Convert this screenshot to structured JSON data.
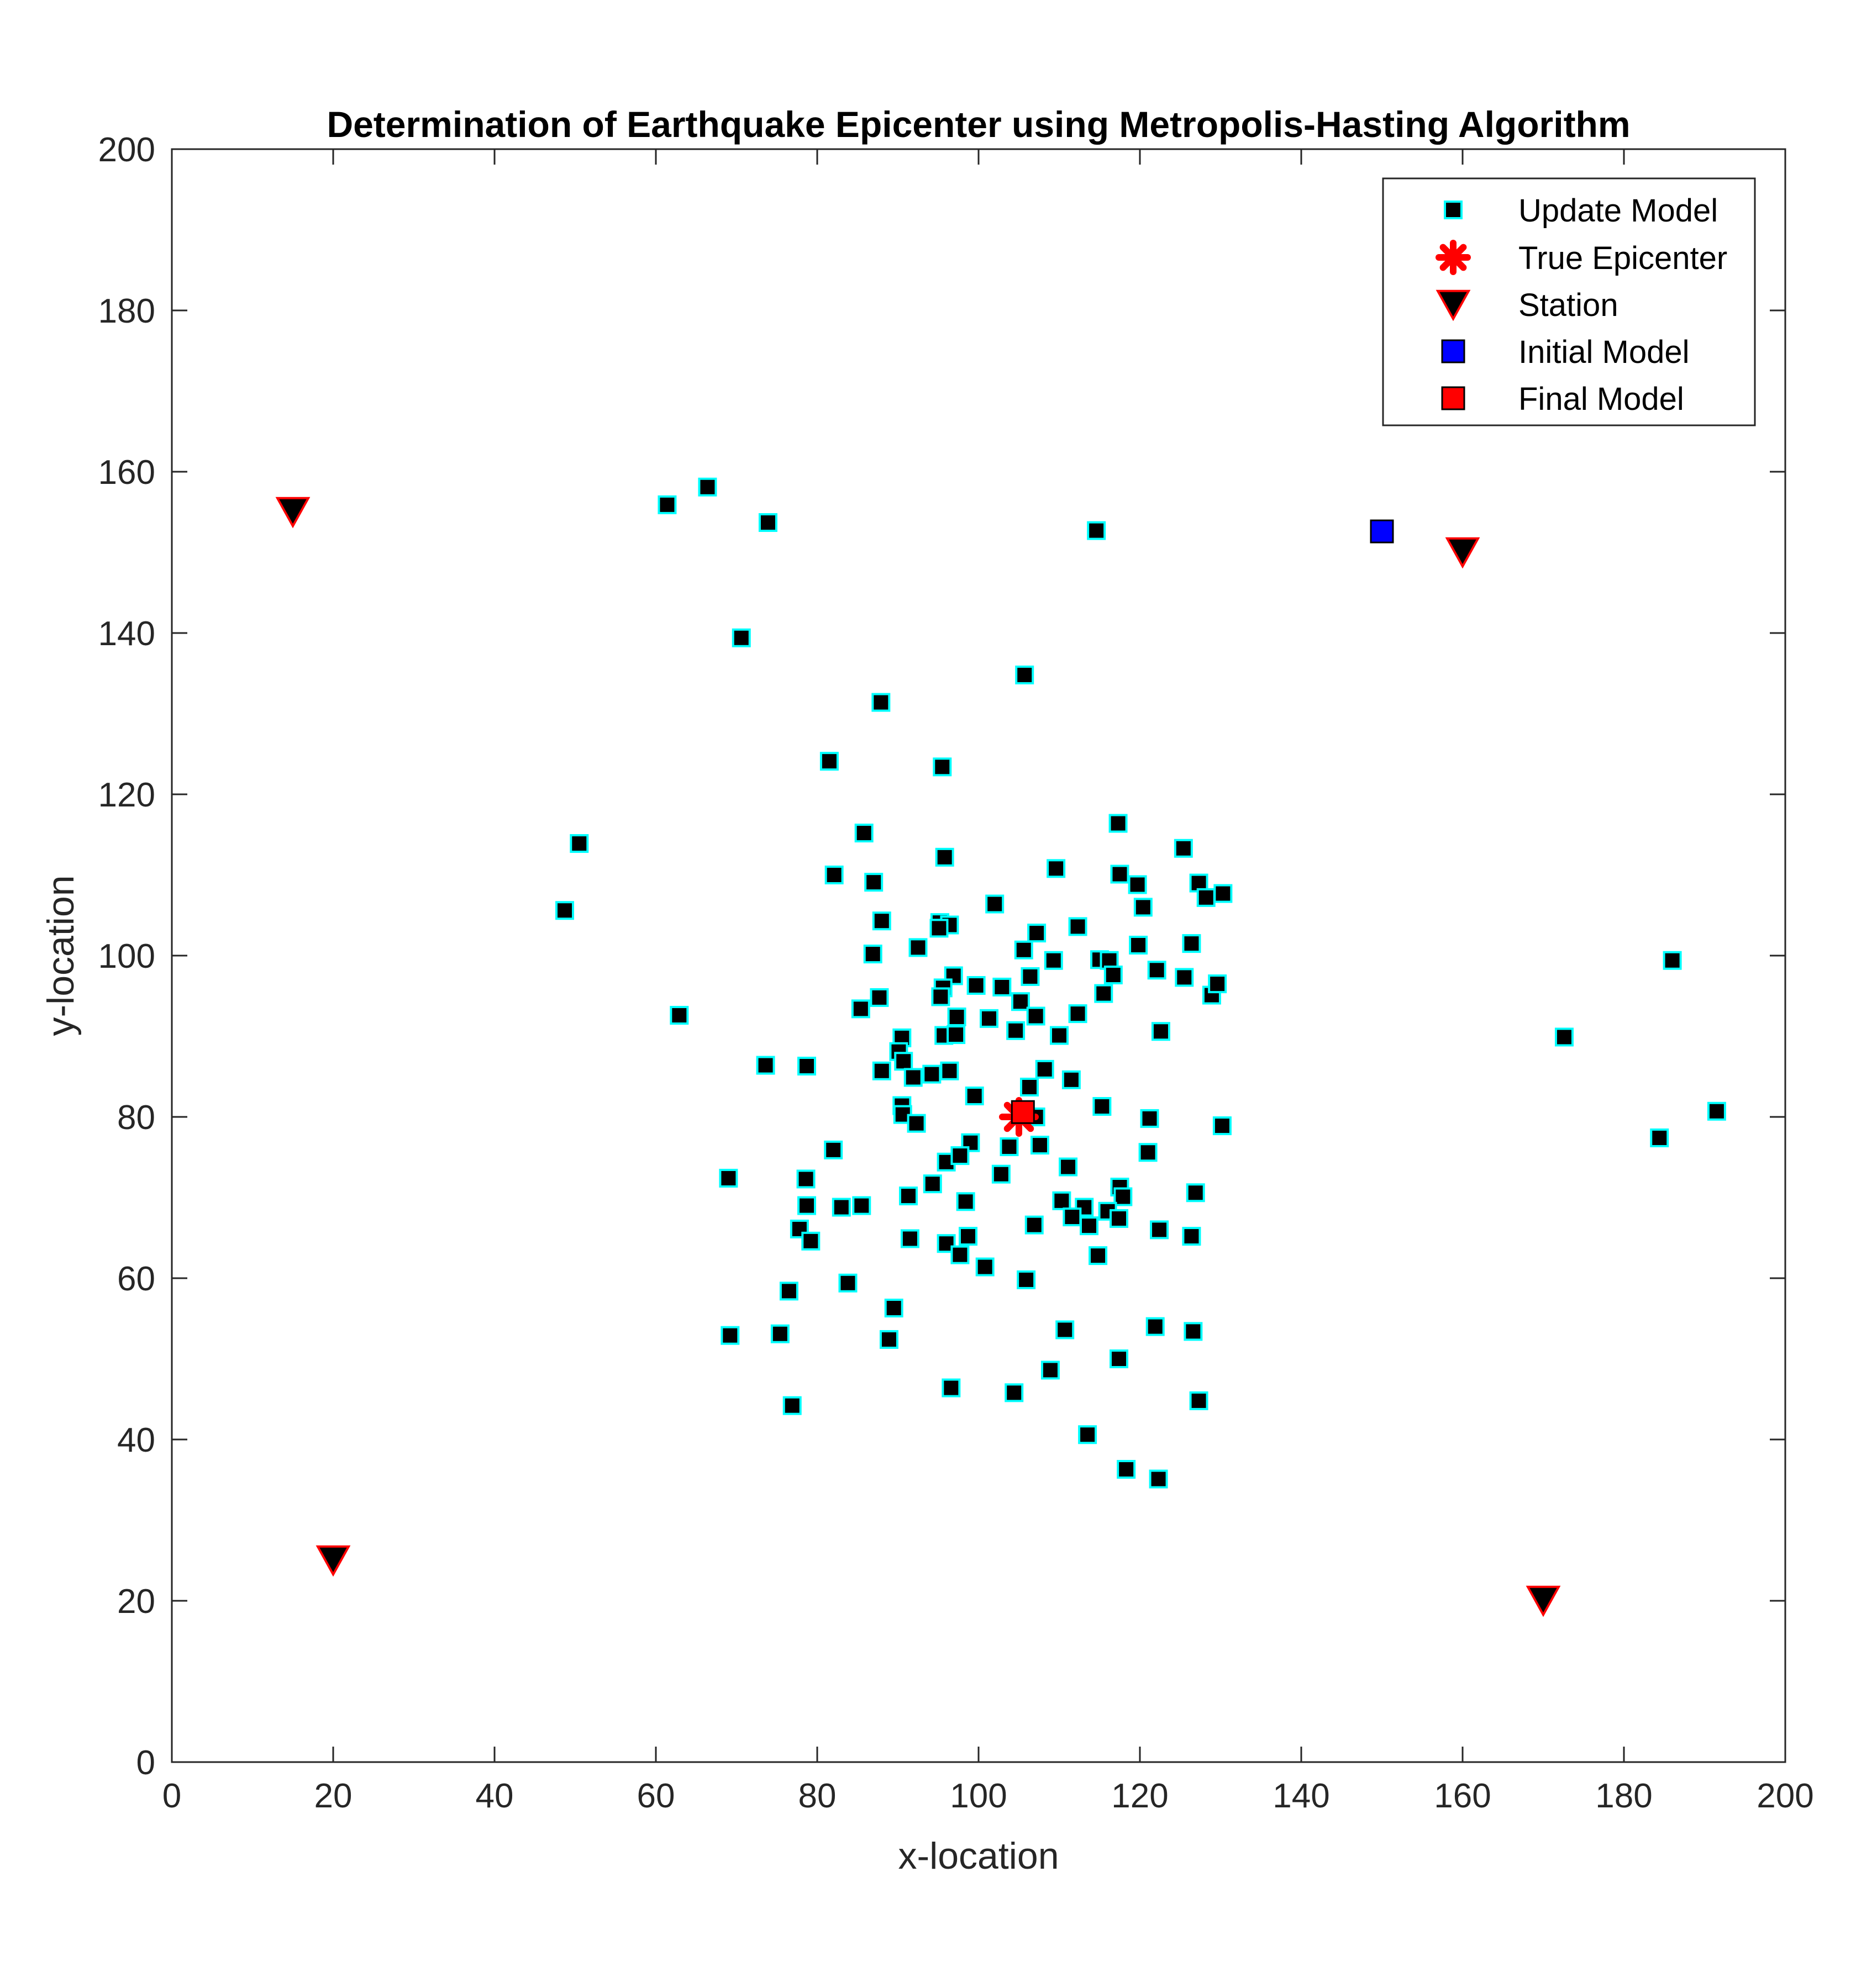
{
  "chart_data": {
    "type": "scatter",
    "title": "Determination of Earthquake Epicenter using Metropolis-Hasting Algorithm",
    "xlabel": "x-location",
    "ylabel": "y-location",
    "xlim": [
      0,
      200
    ],
    "ylim": [
      0,
      200
    ],
    "xticks": [
      "0",
      "20",
      "40",
      "60",
      "80",
      "100",
      "120",
      "140",
      "160",
      "180",
      "200"
    ],
    "yticks": [
      "0",
      "20",
      "40",
      "60",
      "80",
      "100",
      "120",
      "140",
      "160",
      "180",
      "200"
    ],
    "legend_position": "top-right",
    "legend": [
      "Update Model",
      "True Epicenter",
      "Station",
      "Initial Model",
      "Final Model"
    ],
    "colors": {
      "update_face": "#000000",
      "update_edge": "#00ffff",
      "true_epicenter": "#ff0000",
      "station_face": "#000000",
      "station_edge": "#ff0000",
      "initial_face": "#0000ff",
      "final_face": "#ff0000"
    },
    "series": [
      {
        "name": "Update Model",
        "points": [
          [
            61.4,
            155.9
          ],
          [
            66.4,
            158.1
          ],
          [
            73.9,
            153.7
          ],
          [
            70.6,
            139.4
          ],
          [
            114.6,
            152.7
          ],
          [
            105.7,
            134.8
          ],
          [
            87.9,
            131.4
          ],
          [
            81.5,
            124.1
          ],
          [
            95.5,
            123.4
          ],
          [
            85.8,
            115.2
          ],
          [
            50.5,
            113.9
          ],
          [
            48.7,
            105.6
          ],
          [
            82.1,
            110.0
          ],
          [
            87.0,
            109.1
          ],
          [
            95.8,
            112.2
          ],
          [
            109.6,
            110.8
          ],
          [
            117.3,
            116.4
          ],
          [
            117.5,
            110.1
          ],
          [
            125.4,
            113.3
          ],
          [
            119.7,
            108.8
          ],
          [
            127.3,
            109.0
          ],
          [
            128.2,
            107.2
          ],
          [
            130.3,
            107.7
          ],
          [
            120.4,
            106.0
          ],
          [
            102.0,
            106.4
          ],
          [
            88.0,
            104.3
          ],
          [
            95.2,
            104.1
          ],
          [
            96.4,
            103.8
          ],
          [
            95.1,
            103.4
          ],
          [
            107.2,
            102.8
          ],
          [
            112.3,
            103.6
          ],
          [
            86.9,
            100.2
          ],
          [
            92.5,
            101.0
          ],
          [
            105.6,
            100.7
          ],
          [
            109.3,
            99.4
          ],
          [
            115.0,
            99.5
          ],
          [
            116.2,
            99.4
          ],
          [
            119.8,
            101.3
          ],
          [
            126.4,
            101.5
          ],
          [
            87.7,
            94.8
          ],
          [
            85.4,
            93.4
          ],
          [
            96.9,
            97.5
          ],
          [
            95.6,
            96.0
          ],
          [
            95.3,
            94.9
          ],
          [
            99.7,
            96.3
          ],
          [
            102.9,
            96.1
          ],
          [
            106.4,
            97.4
          ],
          [
            116.7,
            97.6
          ],
          [
            122.1,
            98.2
          ],
          [
            125.5,
            97.3
          ],
          [
            128.9,
            95.1
          ],
          [
            129.6,
            96.5
          ],
          [
            115.5,
            95.3
          ],
          [
            105.2,
            94.3
          ],
          [
            97.3,
            92.4
          ],
          [
            101.3,
            92.2
          ],
          [
            107.1,
            92.5
          ],
          [
            112.3,
            92.8
          ],
          [
            104.6,
            90.7
          ],
          [
            110.0,
            90.1
          ],
          [
            122.6,
            90.6
          ],
          [
            90.5,
            89.8
          ],
          [
            90.1,
            88.1
          ],
          [
            90.7,
            86.9
          ],
          [
            95.7,
            90.1
          ],
          [
            97.2,
            90.2
          ],
          [
            62.9,
            92.6
          ],
          [
            73.6,
            86.4
          ],
          [
            78.7,
            86.3
          ],
          [
            88.0,
            85.7
          ],
          [
            91.9,
            84.9
          ],
          [
            94.2,
            85.3
          ],
          [
            96.4,
            85.7
          ],
          [
            108.2,
            85.9
          ],
          [
            111.5,
            84.6
          ],
          [
            106.3,
            83.7
          ],
          [
            99.5,
            82.6
          ],
          [
            90.5,
            81.4
          ],
          [
            90.6,
            80.3
          ],
          [
            92.3,
            79.2
          ],
          [
            107.1,
            80.0
          ],
          [
            115.3,
            81.3
          ],
          [
            121.2,
            79.8
          ],
          [
            130.2,
            78.9
          ],
          [
            99.0,
            76.8
          ],
          [
            103.8,
            76.3
          ],
          [
            107.6,
            76.5
          ],
          [
            96.0,
            74.4
          ],
          [
            97.7,
            75.2
          ],
          [
            82.0,
            75.9
          ],
          [
            121.0,
            75.6
          ],
          [
            102.8,
            72.9
          ],
          [
            111.1,
            73.8
          ],
          [
            69.0,
            72.4
          ],
          [
            78.6,
            72.3
          ],
          [
            94.3,
            71.7
          ],
          [
            91.3,
            70.2
          ],
          [
            98.4,
            69.5
          ],
          [
            110.3,
            69.6
          ],
          [
            117.5,
            71.3
          ],
          [
            117.9,
            70.1
          ],
          [
            126.9,
            70.6
          ],
          [
            78.7,
            69.0
          ],
          [
            83.0,
            68.8
          ],
          [
            85.5,
            69.0
          ],
          [
            113.1,
            68.8
          ],
          [
            116.0,
            68.3
          ],
          [
            117.4,
            67.4
          ],
          [
            111.6,
            67.6
          ],
          [
            113.7,
            66.5
          ],
          [
            106.9,
            66.6
          ],
          [
            122.4,
            66.0
          ],
          [
            126.4,
            65.2
          ],
          [
            77.8,
            66.1
          ],
          [
            79.2,
            64.6
          ],
          [
            91.5,
            64.9
          ],
          [
            96.0,
            64.3
          ],
          [
            98.7,
            65.2
          ],
          [
            97.7,
            62.9
          ],
          [
            100.8,
            61.4
          ],
          [
            114.8,
            62.8
          ],
          [
            83.8,
            59.4
          ],
          [
            76.5,
            58.4
          ],
          [
            105.9,
            59.8
          ],
          [
            89.5,
            56.3
          ],
          [
            69.2,
            52.9
          ],
          [
            75.4,
            53.1
          ],
          [
            88.9,
            52.4
          ],
          [
            110.7,
            53.6
          ],
          [
            121.9,
            54.0
          ],
          [
            126.6,
            53.4
          ],
          [
            117.4,
            50.0
          ],
          [
            108.9,
            48.6
          ],
          [
            96.6,
            46.4
          ],
          [
            104.4,
            45.8
          ],
          [
            127.3,
            44.8
          ],
          [
            76.9,
            44.2
          ],
          [
            113.5,
            40.6
          ],
          [
            118.3,
            36.3
          ],
          [
            122.3,
            35.1
          ],
          [
            172.6,
            89.9
          ],
          [
            186.0,
            99.4
          ],
          [
            184.4,
            77.4
          ],
          [
            191.5,
            80.7
          ]
        ]
      },
      {
        "name": "True Epicenter",
        "points": [
          [
            105,
            80
          ]
        ]
      },
      {
        "name": "Station",
        "points": [
          [
            15,
            155
          ],
          [
            160,
            150
          ],
          [
            20,
            25
          ],
          [
            170,
            20
          ]
        ]
      },
      {
        "name": "Initial Model",
        "points": [
          [
            150,
            152.6
          ]
        ]
      },
      {
        "name": "Final Model",
        "points": [
          [
            105.5,
            80.6
          ]
        ]
      }
    ]
  }
}
